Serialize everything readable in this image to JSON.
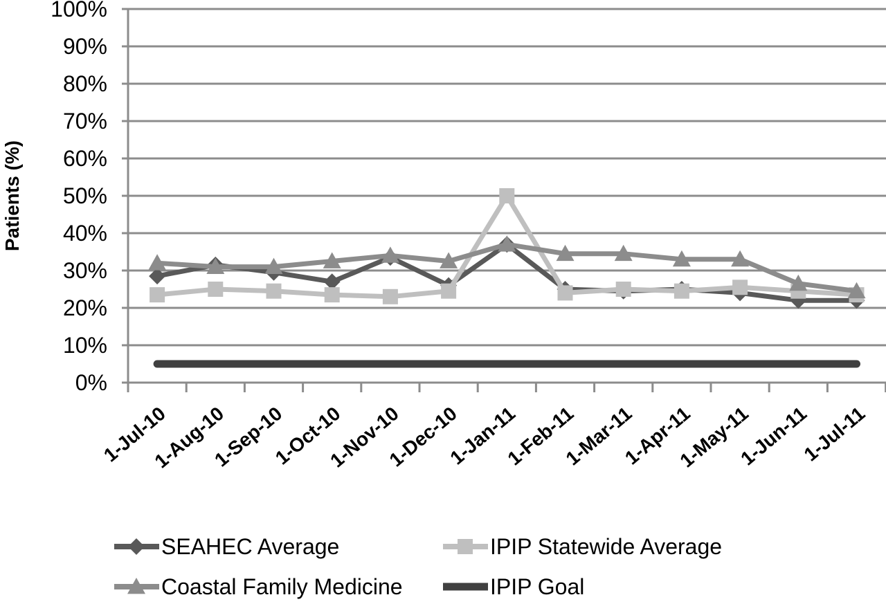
{
  "chart_data": {
    "type": "line",
    "title": "",
    "ylabel": "Patients (%)",
    "xlabel": "",
    "ylim": [
      0,
      100
    ],
    "yticks": [
      "0%",
      "10%",
      "20%",
      "30%",
      "40%",
      "50%",
      "60%",
      "70%",
      "80%",
      "90%",
      "100%"
    ],
    "categories": [
      "1-Jul-10",
      "1-Aug-10",
      "1-Sep-10",
      "1-Oct-10",
      "1-Nov-10",
      "1-Dec-10",
      "1-Jan-11",
      "1-Feb-11",
      "1-Mar-11",
      "1-Apr-11",
      "1-May-11",
      "1-Jun-11",
      "1-Jul-11"
    ],
    "grid": true,
    "legend_position": "bottom",
    "series": [
      {
        "name": "SEAHEC Average",
        "marker": "diamond",
        "color": "#595959",
        "values": [
          28.5,
          31.5,
          29.5,
          27,
          33.5,
          26,
          37,
          25,
          24.5,
          25,
          24,
          22,
          22
        ]
      },
      {
        "name": "IPIP Statewide Average",
        "marker": "square",
        "color": "#bfbfbf",
        "values": [
          23.5,
          25,
          24.5,
          23.5,
          23,
          24.5,
          50,
          24,
          25,
          24.5,
          25.5,
          24.5,
          23.5
        ]
      },
      {
        "name": "Coastal Family Medicine",
        "marker": "triangle",
        "color": "#8c8c8c",
        "values": [
          32,
          31,
          31,
          32.5,
          34,
          32.5,
          37,
          34.5,
          34.5,
          33,
          33,
          26.5,
          24.5
        ]
      },
      {
        "name": "IPIP Goal",
        "marker": "none",
        "color": "#404040",
        "values": [
          5,
          5,
          5,
          5,
          5,
          5,
          5,
          5,
          5,
          5,
          5,
          5,
          5
        ]
      }
    ]
  }
}
